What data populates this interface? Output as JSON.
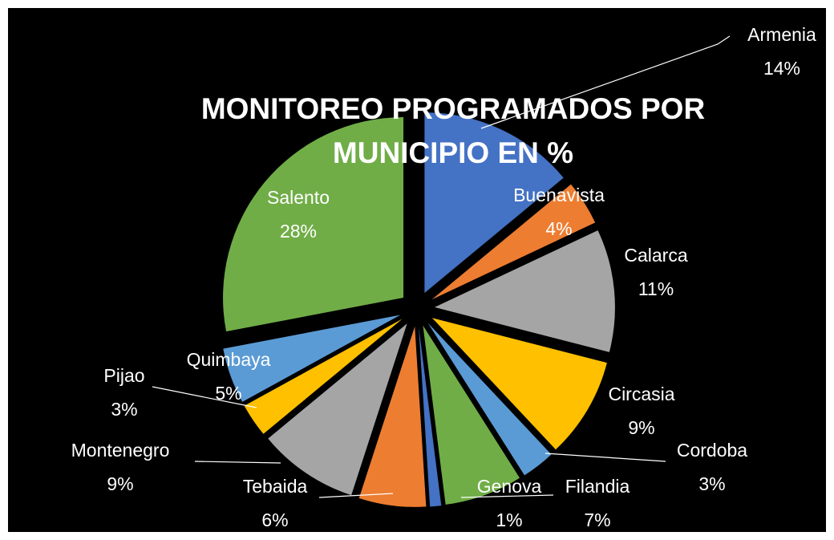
{
  "chart_data": {
    "type": "pie",
    "title": "MONITOREO  PROGRAMADOS POR MUNICIPIO EN %",
    "categories": [
      "Armenia",
      "Buenavista",
      "Calarca",
      "Circasia",
      "Cordoba",
      "Filandia",
      "Genova",
      "Tebaida",
      "Montenegro",
      "Pijao",
      "Quimbaya",
      "Salento"
    ],
    "values": [
      14,
      4,
      11,
      9,
      3,
      7,
      1,
      6,
      9,
      3,
      5,
      28
    ],
    "value_labels": [
      "14%",
      "4%",
      "11%",
      "9%",
      "3%",
      "7%",
      "1%",
      "6%",
      "9%",
      "3%",
      "5%",
      "28%"
    ],
    "colors": [
      "#4472c4",
      "#ed7d31",
      "#a5a5a5",
      "#ffc000",
      "#5b9bd5",
      "#70ad47",
      "#4472c4",
      "#ed7d31",
      "#a5a5a5",
      "#ffc000",
      "#5b9bd5",
      "#70ad47"
    ]
  }
}
